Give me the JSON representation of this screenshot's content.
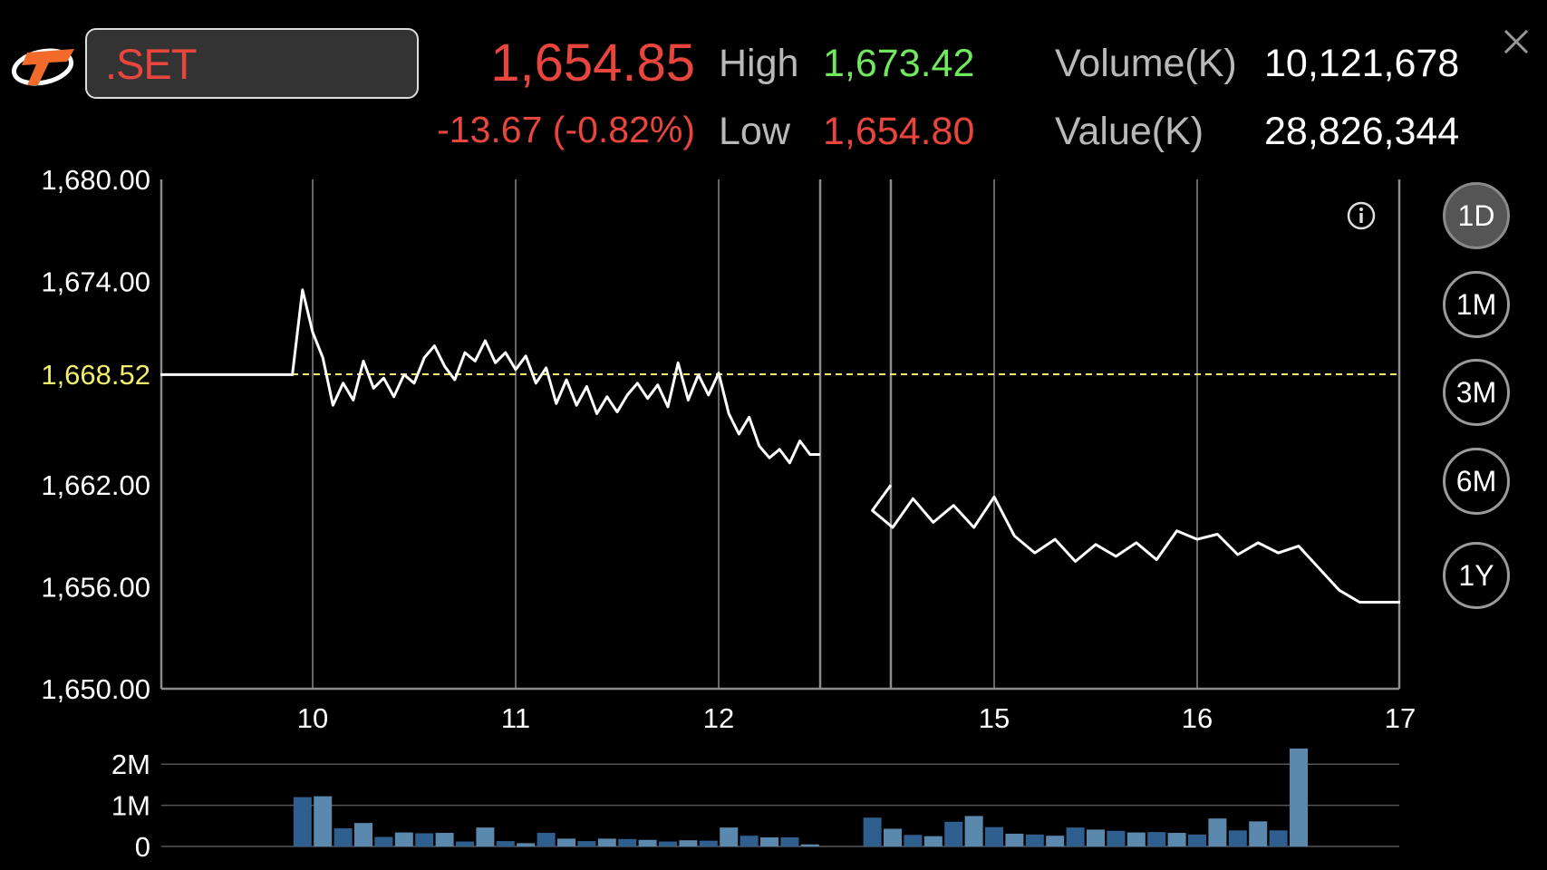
{
  "header": {
    "symbol": ".SET",
    "price": "1,654.85",
    "change": "-13.67 (-0.82%)",
    "high_label": "High",
    "high_value": "1,673.42",
    "low_label": "Low",
    "low_value": "1,654.80",
    "volume_label": "Volume(K)",
    "volume_value": "10,121,678",
    "value_label": "Value(K)",
    "value_value": "28,826,344"
  },
  "periods": [
    "1D",
    "1M",
    "3M",
    "6M",
    "1Y"
  ],
  "active_period": "1D",
  "colors": {
    "price_down": "#e8453c",
    "high": "#71e85f",
    "reference": "#f2ef6a",
    "line": "#ffffff",
    "volume_bar_dark": "#2f5f8f",
    "volume_bar_light": "#5b88ad"
  },
  "icons": [
    "app-logo-icon",
    "close-icon",
    "info-icon"
  ],
  "chart_data": [
    {
      "type": "line",
      "title": "",
      "xlabel": "",
      "ylabel": "",
      "ylim": [
        1650,
        1680
      ],
      "x_ticks": [
        "10",
        "11",
        "12",
        "15",
        "16",
        "17"
      ],
      "x_tick_positions_hours": [
        10,
        11,
        12,
        15,
        16,
        17
      ],
      "y_ticks": [
        "1,680.00",
        "1,674.00",
        "1,668.52",
        "1,662.00",
        "1,656.00",
        "1,650.00"
      ],
      "y_tick_values": [
        1680,
        1674,
        1668.52,
        1662,
        1656,
        1650
      ],
      "reference_line": {
        "label": "1,668.52",
        "value": 1668.52
      },
      "sessions": [
        {
          "x": [
            9.25,
            9.9,
            9.95,
            10.0,
            10.05,
            10.1,
            10.15,
            10.2,
            10.25,
            10.3,
            10.35,
            10.4,
            10.45,
            10.5,
            10.55,
            10.6,
            10.65,
            10.7,
            10.75,
            10.8,
            10.85,
            10.9,
            10.95,
            11.0,
            11.05,
            11.1,
            11.15,
            11.2,
            11.25,
            11.3,
            11.35,
            11.4,
            11.45,
            11.5,
            11.55,
            11.6,
            11.65,
            11.7,
            11.75,
            11.8,
            11.85,
            11.9,
            11.95,
            12.0,
            12.05,
            12.1,
            12.15,
            12.2,
            12.25,
            12.3,
            12.35,
            12.4,
            12.45,
            12.5
          ],
          "y": [
            1668.5,
            1668.5,
            1673.5,
            1671.0,
            1669.5,
            1666.7,
            1668.0,
            1667.0,
            1669.3,
            1667.7,
            1668.3,
            1667.2,
            1668.5,
            1668.0,
            1669.5,
            1670.2,
            1669.0,
            1668.2,
            1669.8,
            1669.3,
            1670.5,
            1669.2,
            1669.8,
            1668.8,
            1669.6,
            1668.0,
            1668.9,
            1666.8,
            1668.2,
            1666.7,
            1667.8,
            1666.2,
            1667.2,
            1666.3,
            1667.3,
            1668.0,
            1667.1,
            1667.9,
            1666.6,
            1669.2,
            1667.0,
            1668.5,
            1667.3,
            1668.6,
            1666.2,
            1665.0,
            1666.0,
            1664.3,
            1663.6,
            1664.1,
            1663.3,
            1664.6,
            1663.8,
            1663.8
          ]
        },
        {
          "x": [
            14.3,
            14.4,
            14.5,
            14.6,
            14.7,
            14.8,
            14.9,
            15.0,
            15.1,
            15.2,
            15.3,
            15.4,
            15.5,
            15.6,
            15.7,
            15.8,
            15.9,
            16.0,
            16.1,
            16.2,
            16.3,
            16.4,
            16.5,
            16.6,
            16.7,
            16.8,
            16.9,
            17.0
          ],
          "y": [
            1662.0,
            1660.5,
            1659.5,
            1661.2,
            1659.8,
            1660.8,
            1659.5,
            1661.3,
            1659.0,
            1658.0,
            1658.8,
            1657.5,
            1658.5,
            1657.8,
            1658.6,
            1657.6,
            1659.3,
            1658.8,
            1659.1,
            1657.9,
            1658.6,
            1658.0,
            1658.4,
            1657.1,
            1655.8,
            1655.1,
            1655.1,
            1655.1
          ]
        }
      ],
      "gaps": [
        [
          12.5,
          14.3
        ]
      ]
    },
    {
      "type": "bar",
      "title": "",
      "xlabel": "",
      "ylabel": "",
      "ylim": [
        0,
        2400000
      ],
      "y_ticks": [
        "2M",
        "1M",
        "0"
      ],
      "y_tick_values": [
        2000000,
        1000000,
        0
      ],
      "morning_session": {
        "x_start": 9.95,
        "x_step": 0.1,
        "values": [
          1200000,
          1220000,
          440000,
          570000,
          230000,
          340000,
          320000,
          330000,
          120000,
          460000,
          130000,
          80000,
          330000,
          190000,
          130000,
          190000,
          180000,
          160000,
          120000,
          150000,
          140000,
          460000,
          260000,
          220000,
          220000,
          50000
        ]
      },
      "afternoon_session": {
        "x_start": 14.4,
        "x_step": 0.1,
        "values": [
          700000,
          430000,
          280000,
          250000,
          600000,
          740000,
          470000,
          310000,
          290000,
          260000,
          460000,
          410000,
          380000,
          340000,
          350000,
          330000,
          290000,
          680000,
          390000,
          610000,
          390000,
          2380000
        ]
      }
    }
  ]
}
